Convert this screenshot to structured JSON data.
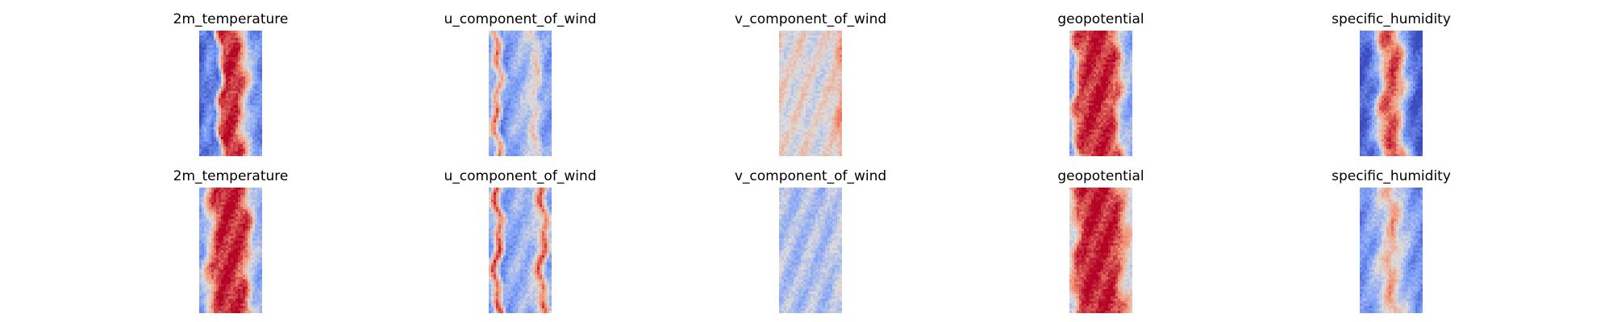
{
  "chart_data": [
    {
      "type": "heatmap",
      "title": "2m_temperature",
      "row": 1,
      "colormap": "coolwarm",
      "profile": [
        0.08,
        0.22,
        0.12,
        0.92,
        0.95,
        0.9,
        0.55,
        0.28,
        0.18
      ],
      "seed": 11
    },
    {
      "type": "heatmap",
      "title": "u_component_of_wind",
      "row": 1,
      "colormap": "coolwarm",
      "profile": [
        0.3,
        0.78,
        0.2,
        0.3,
        0.35,
        0.4,
        0.6,
        0.28,
        0.25
      ],
      "seed": 23
    },
    {
      "type": "heatmap",
      "title": "v_component_of_wind",
      "row": 1,
      "colormap": "coolwarm",
      "profile": [
        0.55,
        0.5,
        0.52,
        0.55,
        0.5,
        0.48,
        0.52,
        0.55,
        0.7
      ],
      "seed": 37
    },
    {
      "type": "heatmap",
      "title": "geopotential",
      "row": 1,
      "colormap": "coolwarm",
      "profile": [
        0.3,
        0.85,
        0.92,
        0.95,
        0.95,
        0.92,
        0.85,
        0.4,
        0.3
      ],
      "seed": 41
    },
    {
      "type": "heatmap",
      "title": "specific_humidity",
      "row": 1,
      "colormap": "coolwarm",
      "profile": [
        0.05,
        0.1,
        0.3,
        0.75,
        0.9,
        0.75,
        0.3,
        0.08,
        0.03
      ],
      "seed": 53
    },
    {
      "type": "heatmap",
      "title": "2m_temperature",
      "row": 2,
      "colormap": "coolwarm",
      "profile": [
        0.25,
        0.55,
        0.88,
        0.95,
        0.95,
        0.93,
        0.85,
        0.4,
        0.3
      ],
      "seed": 61
    },
    {
      "type": "heatmap",
      "title": "u_component_of_wind",
      "row": 2,
      "colormap": "coolwarm",
      "profile": [
        0.3,
        0.9,
        0.25,
        0.3,
        0.35,
        0.32,
        0.45,
        0.85,
        0.3
      ],
      "seed": 73
    },
    {
      "type": "heatmap",
      "title": "v_component_of_wind",
      "row": 2,
      "colormap": "coolwarm",
      "profile": [
        0.4,
        0.38,
        0.36,
        0.38,
        0.4,
        0.38,
        0.36,
        0.4,
        0.45
      ],
      "seed": 79
    },
    {
      "type": "heatmap",
      "title": "geopotential",
      "row": 2,
      "colormap": "coolwarm",
      "profile": [
        0.5,
        0.85,
        0.95,
        0.96,
        0.95,
        0.95,
        0.92,
        0.7,
        0.5
      ],
      "seed": 89
    },
    {
      "type": "heatmap",
      "title": "specific_humidity",
      "row": 2,
      "colormap": "coolwarm",
      "profile": [
        0.2,
        0.25,
        0.35,
        0.5,
        0.72,
        0.5,
        0.35,
        0.25,
        0.2
      ],
      "seed": 97
    }
  ]
}
